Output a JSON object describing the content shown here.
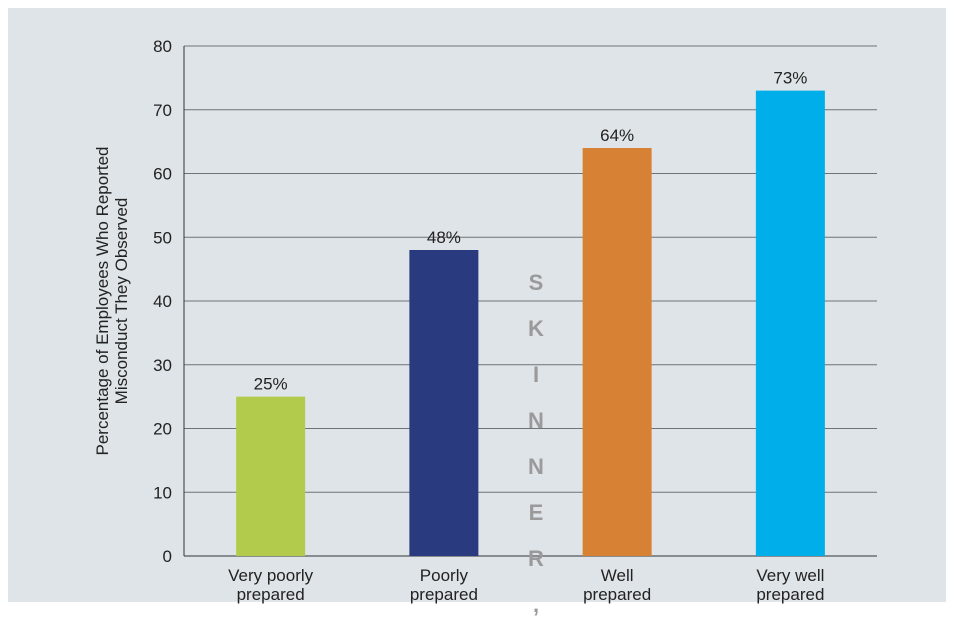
{
  "chart_data": {
    "type": "bar",
    "categories": [
      "Very poorly\nprepared",
      "Poorly\nprepared",
      "Well\nprepared",
      "Very well\nprepared"
    ],
    "values": [
      25,
      48,
      64,
      73
    ],
    "data_labels": [
      "25%",
      "48%",
      "64%",
      "73%"
    ],
    "ylabel": "Percentage of Employees Who Reported\nMisconduct They Observed",
    "xlabel": "",
    "ylim": [
      0,
      80
    ],
    "yticks": [
      0,
      10,
      20,
      30,
      40,
      50,
      60,
      70,
      80
    ],
    "grid": true,
    "bar_colors": [
      "#b2cb4c",
      "#2a3a7f",
      "#d68133",
      "#00aeea"
    ],
    "background_color": "#dfe4e8"
  },
  "watermark": {
    "letters": [
      "S",
      "K",
      "I",
      "N",
      "N",
      "E",
      "R",
      ","
    ],
    "color": "#9a9a9a"
  }
}
